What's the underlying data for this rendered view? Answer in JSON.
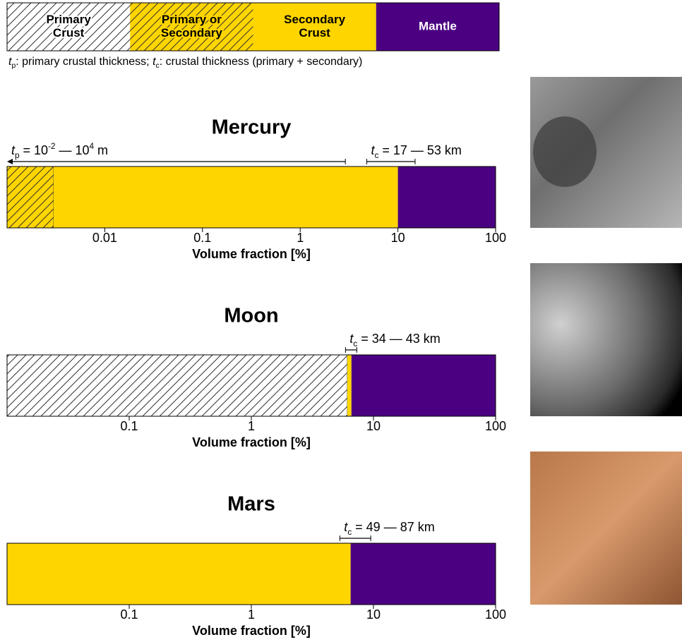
{
  "legend": {
    "items": [
      {
        "label": [
          "Primary",
          "Crust"
        ],
        "color": "#ffffff",
        "hatch": true,
        "text_color": "#000000"
      },
      {
        "label": [
          "Primary or",
          "Secondary"
        ],
        "color": "#ffd500",
        "hatch": true,
        "text_color": "#000000"
      },
      {
        "label": [
          "Secondary",
          "Crust"
        ],
        "color": "#ffd500",
        "hatch": false,
        "text_color": "#000000"
      },
      {
        "label": [
          "Mantle"
        ],
        "color": "#4b0082",
        "hatch": false,
        "text_color": "#ffffff"
      }
    ]
  },
  "note": {
    "parts": [
      "t",
      "p",
      ": primary crustal thickness; ",
      "t",
      "c",
      ": crustal thickness (primary + secondary)"
    ],
    "format": [
      "italic",
      "sub",
      "normal",
      "italic",
      "sub",
      "normal"
    ]
  },
  "chart_data": [
    {
      "type": "bar",
      "orientation": "horizontal",
      "stacked": true,
      "title": "Mercury",
      "xlabel": "Volume fraction [%]",
      "xscale": "log",
      "xlim": [
        0.001,
        100
      ],
      "xticks": [
        0.01,
        0.1,
        1,
        10,
        100
      ],
      "series": [
        {
          "color": "#ffd500",
          "hatch": true,
          "values": [
            0.003
          ]
        },
        {
          "color": "#ffd500",
          "hatch": false,
          "values": [
            9.997
          ]
        },
        {
          "color": "#4b0082",
          "hatch": false,
          "values": [
            90
          ]
        }
      ],
      "annotations": [
        {
          "parts": [
            "t",
            "p",
            " = 10",
            "-2",
            " — 10",
            "4",
            " m"
          ],
          "format": [
            "italic",
            "sub",
            "normal",
            "sup",
            "normal",
            "sup",
            "normal"
          ],
          "style": "arrow-left",
          "to": 2.9
        },
        {
          "parts": [
            "t",
            "c",
            " = 17 — 53 km"
          ],
          "format": [
            "italic",
            "sub",
            "normal"
          ],
          "style": "bracket",
          "range": [
            4.8,
            15
          ]
        }
      ]
    },
    {
      "type": "bar",
      "orientation": "horizontal",
      "stacked": true,
      "title": "Moon",
      "xlabel": "Volume fraction [%]",
      "xscale": "log",
      "xlim": [
        0.01,
        100
      ],
      "xticks": [
        0.1,
        1,
        10,
        100
      ],
      "series": [
        {
          "color": "#ffffff",
          "hatch": true,
          "values": [
            6.1
          ]
        },
        {
          "color": "#ffd500",
          "hatch": false,
          "values": [
            0.5
          ]
        },
        {
          "color": "#4b0082",
          "hatch": false,
          "values": [
            93.4
          ]
        }
      ],
      "annotations": [
        {
          "parts": [
            "t",
            "c",
            " = 34 — 43 km"
          ],
          "format": [
            "italic",
            "sub",
            "normal"
          ],
          "style": "bracket",
          "range": [
            5.9,
            7.3
          ]
        }
      ]
    },
    {
      "type": "bar",
      "orientation": "horizontal",
      "stacked": true,
      "title": "Mars",
      "xlabel": "Volume fraction [%]",
      "xscale": "log",
      "xlim": [
        0.01,
        100
      ],
      "xticks": [
        0.1,
        1,
        10,
        100
      ],
      "series": [
        {
          "color": "#ffd500",
          "hatch": false,
          "values": [
            6.5
          ]
        },
        {
          "color": "#4b0082",
          "hatch": false,
          "values": [
            93.5
          ]
        }
      ],
      "annotations": [
        {
          "parts": [
            "t",
            "c",
            " = 49 — 87 km"
          ],
          "format": [
            "italic",
            "sub",
            "normal"
          ],
          "style": "bracket",
          "range": [
            5.3,
            9.5
          ]
        }
      ]
    }
  ]
}
